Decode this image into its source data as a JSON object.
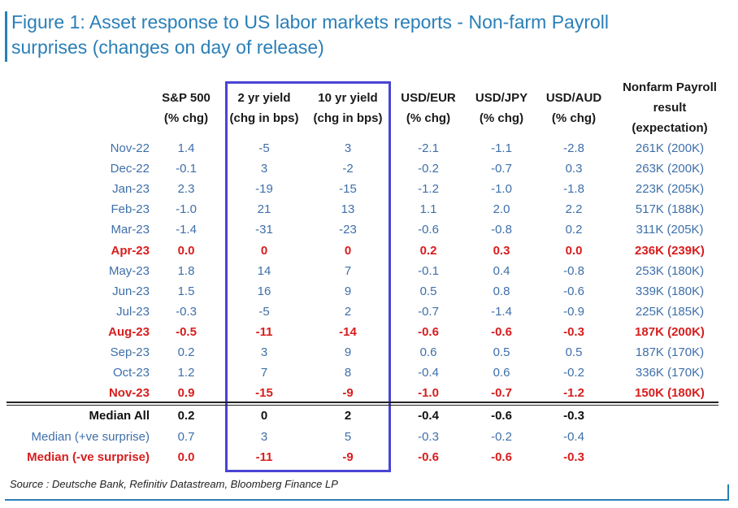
{
  "title": {
    "line1": "Figure 1: Asset response to US labor markets reports - Non-farm Payroll",
    "line2": "surprises (changes on day of release)"
  },
  "source": "Source : Deutsche Bank, Refinitiv Datastream, Bloomberg Finance LP",
  "colors": {
    "title": "#2a7fb8",
    "body_text": "#3e6fa9",
    "miss": "#d81d1d",
    "highlight_box": "#4a44d4"
  },
  "chart_data": {
    "type": "table",
    "columns": [
      {
        "key": "spx",
        "lines": [
          "S&P 500",
          "(% chg)"
        ]
      },
      {
        "key": "y2",
        "lines": [
          "2 yr yield",
          "(chg in bps)"
        ]
      },
      {
        "key": "y10",
        "lines": [
          "10 yr yield",
          "(chg in bps)"
        ]
      },
      {
        "key": "eur",
        "lines": [
          "USD/EUR",
          "(% chg)"
        ]
      },
      {
        "key": "jpy",
        "lines": [
          "USD/JPY",
          "(% chg)"
        ]
      },
      {
        "key": "aud",
        "lines": [
          "USD/AUD",
          "(% chg)"
        ]
      },
      {
        "key": "nfp",
        "lines": [
          "Nonfarm Payroll",
          "result",
          "(expectation)"
        ]
      }
    ],
    "rows": [
      {
        "label": "Nov-22",
        "style": "normal",
        "values": [
          "1.4",
          "-5",
          "3",
          "-2.1",
          "-1.1",
          "-2.8",
          "261K (200K)"
        ]
      },
      {
        "label": "Dec-22",
        "style": "normal",
        "values": [
          "-0.1",
          "3",
          "-2",
          "-0.2",
          "-0.7",
          "0.3",
          "263K (200K)"
        ]
      },
      {
        "label": "Jan-23",
        "style": "normal",
        "values": [
          "2.3",
          "-19",
          "-15",
          "-1.2",
          "-1.0",
          "-1.8",
          "223K (205K)"
        ]
      },
      {
        "label": "Feb-23",
        "style": "normal",
        "values": [
          "-1.0",
          "21",
          "13",
          "1.1",
          "2.0",
          "2.2",
          "517K (188K)"
        ]
      },
      {
        "label": "Mar-23",
        "style": "normal",
        "values": [
          "-1.4",
          "-31",
          "-23",
          "-0.6",
          "-0.8",
          "0.2",
          "311K (205K)"
        ]
      },
      {
        "label": "Apr-23",
        "style": "miss",
        "values": [
          "0.0",
          "0",
          "0",
          "0.2",
          "0.3",
          "0.0",
          "236K (239K)"
        ]
      },
      {
        "label": "May-23",
        "style": "normal",
        "values": [
          "1.8",
          "14",
          "7",
          "-0.1",
          "0.4",
          "-0.8",
          "253K (180K)"
        ]
      },
      {
        "label": "Jun-23",
        "style": "normal",
        "values": [
          "1.5",
          "16",
          "9",
          "0.5",
          "0.8",
          "-0.6",
          "339K (180K)"
        ]
      },
      {
        "label": "Jul-23",
        "style": "normal",
        "values": [
          "-0.3",
          "-5",
          "2",
          "-0.7",
          "-1.4",
          "-0.9",
          "225K (185K)"
        ]
      },
      {
        "label": "Aug-23",
        "style": "miss",
        "values": [
          "-0.5",
          "-11",
          "-14",
          "-0.6",
          "-0.6",
          "-0.3",
          "187K (200K)"
        ]
      },
      {
        "label": "Sep-23",
        "style": "normal",
        "values": [
          "0.2",
          "3",
          "9",
          "0.6",
          "0.5",
          "0.5",
          "187K (170K)"
        ]
      },
      {
        "label": "Oct-23",
        "style": "normal",
        "values": [
          "1.2",
          "7",
          "8",
          "-0.4",
          "0.6",
          "-0.2",
          "336K (170K)"
        ]
      },
      {
        "label": "Nov-23",
        "style": "miss",
        "values": [
          "0.9",
          "-15",
          "-9",
          "-1.0",
          "-0.7",
          "-1.2",
          "150K (180K)"
        ]
      }
    ],
    "summary": [
      {
        "label": "Median All",
        "style": "bold",
        "values": [
          "0.2",
          "0",
          "2",
          "-0.4",
          "-0.6",
          "-0.3",
          ""
        ]
      },
      {
        "label": "Median (+ve surprise)",
        "style": "normal",
        "values": [
          "0.7",
          "3",
          "5",
          "-0.3",
          "-0.2",
          "-0.4",
          ""
        ]
      },
      {
        "label": "Median (-ve surprise)",
        "style": "miss",
        "values": [
          "0.0",
          "-11",
          "-9",
          "-0.6",
          "-0.6",
          "-0.3",
          ""
        ]
      }
    ],
    "highlighted_columns": [
      "y2",
      "y10"
    ]
  }
}
